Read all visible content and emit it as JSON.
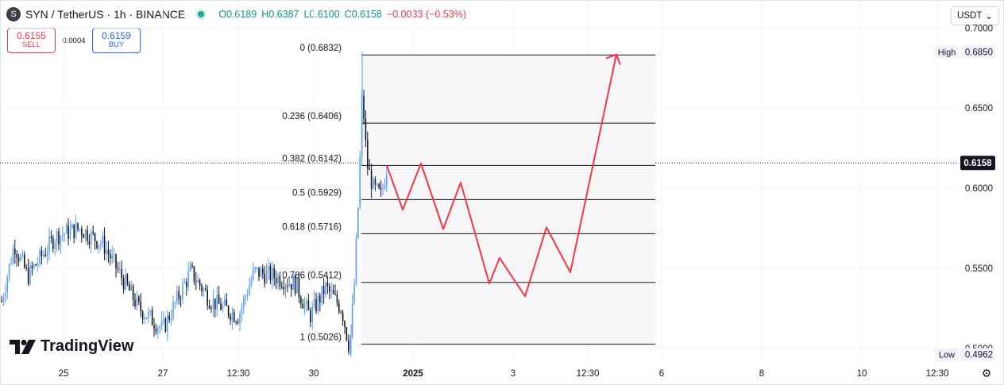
{
  "header": {
    "symbol_icon": "S",
    "title": "SYN / TetherUS · 1h · BINANCE",
    "ohlc": {
      "open": "O0.6189",
      "high": "H0.6387",
      "low": "L0.6100",
      "close": "C0.6158",
      "change": "−0.0033 (−0.53%)"
    }
  },
  "trade": {
    "sell_price": "0.6155",
    "sell_label": "SELL",
    "spread": "0.0004",
    "buy_price": "0.6159",
    "buy_label": "BUY"
  },
  "currency": {
    "label": "USDT",
    "icon": "chevron-down-icon"
  },
  "branding": {
    "logo_text": "TradingView"
  },
  "colors": {
    "up": "#5b9cf6",
    "down": "#131722",
    "arrow": "#f23645",
    "text": "#131722"
  },
  "chart_data": {
    "type": "candlestick",
    "ylim": [
      0.4905,
      0.7175
    ],
    "y_ticks": [
      "0.7000",
      "0.6500",
      "0.6000",
      "0.5500",
      "0.5000"
    ],
    "x_ticks": [
      "25",
      "27",
      "12:30",
      "30",
      "2025",
      "3",
      "12:30",
      "6",
      "8",
      "10",
      "12:30"
    ],
    "last_price": {
      "label": "0.6158",
      "value": 0.6158
    },
    "high_marker": {
      "label": "High",
      "value_text": "0.6850",
      "value": 0.685
    },
    "low_marker": {
      "label": "Low",
      "value_text": "0.4962",
      "value": 0.4962
    },
    "fib_levels": [
      {
        "label": "0 (0.6832)",
        "value": 0.6832
      },
      {
        "label": "0.236 (0.6406)",
        "value": 0.6406
      },
      {
        "label": "0.382 (0.6142)",
        "value": 0.6142
      },
      {
        "label": "0.5 (0.5929)",
        "value": 0.5929
      },
      {
        "label": "0.618 (0.5716)",
        "value": 0.5716
      },
      {
        "label": "0.786 (0.5412)",
        "value": 0.5412
      },
      {
        "label": "1 (0.5026)",
        "value": 0.5026
      }
    ],
    "projection_path": [
      0.6142,
      0.5865,
      0.6155,
      0.5745,
      0.6035,
      0.5405,
      0.5565,
      0.5325,
      0.5755,
      0.5475,
      0.6835
    ]
  }
}
